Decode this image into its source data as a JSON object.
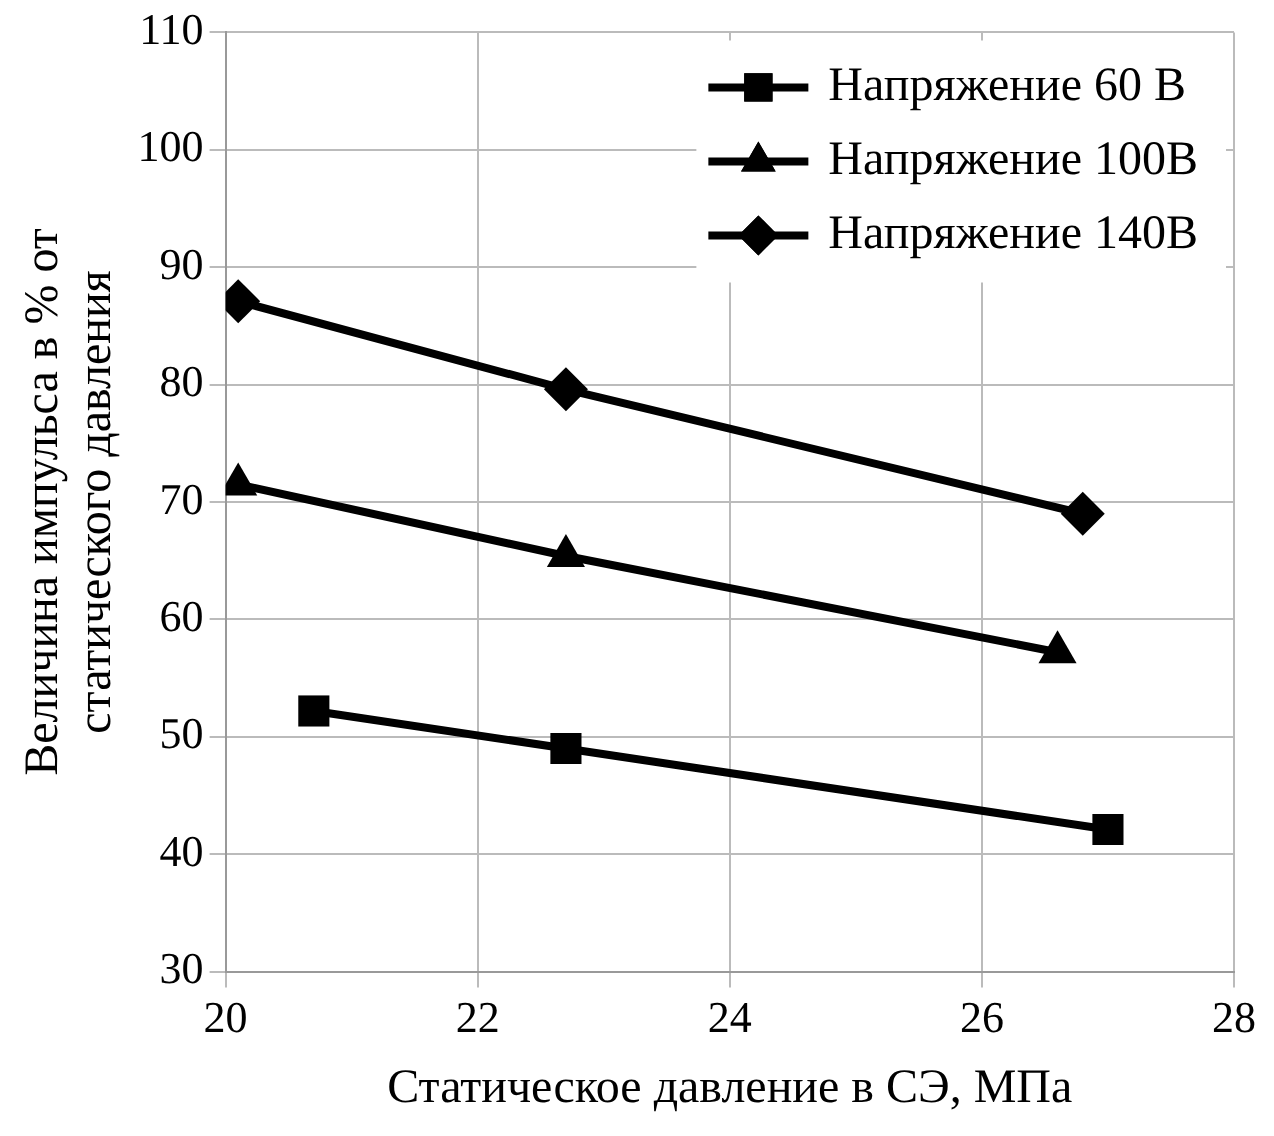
{
  "chart_data": {
    "type": "line",
    "xlabel": "Статическое давление в СЭ, МПа",
    "ylabel": "Величина импульса в % от статического давления",
    "xlim": [
      20,
      28
    ],
    "xticks": [
      20,
      22,
      24,
      26,
      28
    ],
    "ylim": [
      30,
      110
    ],
    "yticks": [
      30,
      40,
      50,
      60,
      70,
      80,
      90,
      100,
      110
    ],
    "grid": true,
    "legend": "top right",
    "series": [
      {
        "name": "Напряжение 60 В",
        "color": "#000000",
        "marker": "square",
        "x": [
          20.7,
          22.7,
          27.0
        ],
        "values": [
          52.2,
          49,
          42.1
        ]
      },
      {
        "name": "Напряжение 100В",
        "color": "#000000",
        "marker": "triangle",
        "x": [
          20.1,
          22.7,
          26.6
        ],
        "values": [
          71.5,
          65.4,
          57.2
        ]
      },
      {
        "name": "Напряжение 140В",
        "color": "#000000",
        "marker": "diamond",
        "x": [
          20.1,
          22.7,
          26.8
        ],
        "values": [
          87.1,
          79.6,
          69.0
        ]
      }
    ]
  }
}
